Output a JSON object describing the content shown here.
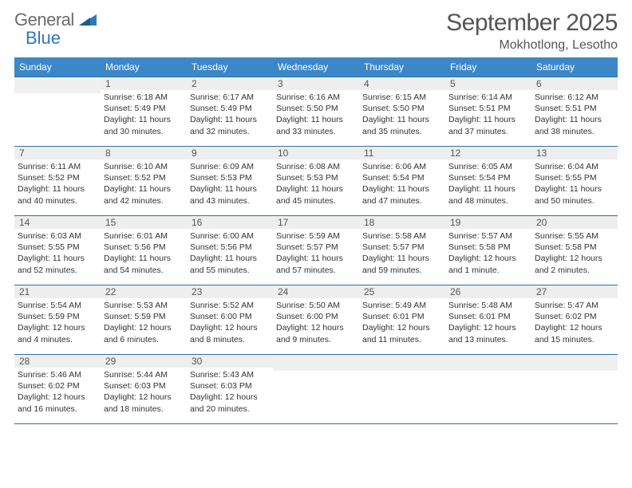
{
  "brand": {
    "part1": "General",
    "part2": "Blue"
  },
  "title": "September 2025",
  "location": "Mokhotlong, Lesotho",
  "colors": {
    "header_bg": "#3b87c8",
    "header_text": "#ffffff",
    "row_divider": "#2f6fa8",
    "daynum_bg": "#eeeeee",
    "text": "#333333",
    "logo_gray": "#6b6b6b",
    "logo_blue": "#2f79b9"
  },
  "weekdays": [
    "Sunday",
    "Monday",
    "Tuesday",
    "Wednesday",
    "Thursday",
    "Friday",
    "Saturday"
  ],
  "weeks": [
    [
      {
        "empty": true
      },
      {
        "day": "1",
        "sunrise": "Sunrise: 6:18 AM",
        "sunset": "Sunset: 5:49 PM",
        "daylight1": "Daylight: 11 hours",
        "daylight2": "and 30 minutes."
      },
      {
        "day": "2",
        "sunrise": "Sunrise: 6:17 AM",
        "sunset": "Sunset: 5:49 PM",
        "daylight1": "Daylight: 11 hours",
        "daylight2": "and 32 minutes."
      },
      {
        "day": "3",
        "sunrise": "Sunrise: 6:16 AM",
        "sunset": "Sunset: 5:50 PM",
        "daylight1": "Daylight: 11 hours",
        "daylight2": "and 33 minutes."
      },
      {
        "day": "4",
        "sunrise": "Sunrise: 6:15 AM",
        "sunset": "Sunset: 5:50 PM",
        "daylight1": "Daylight: 11 hours",
        "daylight2": "and 35 minutes."
      },
      {
        "day": "5",
        "sunrise": "Sunrise: 6:14 AM",
        "sunset": "Sunset: 5:51 PM",
        "daylight1": "Daylight: 11 hours",
        "daylight2": "and 37 minutes."
      },
      {
        "day": "6",
        "sunrise": "Sunrise: 6:12 AM",
        "sunset": "Sunset: 5:51 PM",
        "daylight1": "Daylight: 11 hours",
        "daylight2": "and 38 minutes."
      }
    ],
    [
      {
        "day": "7",
        "sunrise": "Sunrise: 6:11 AM",
        "sunset": "Sunset: 5:52 PM",
        "daylight1": "Daylight: 11 hours",
        "daylight2": "and 40 minutes."
      },
      {
        "day": "8",
        "sunrise": "Sunrise: 6:10 AM",
        "sunset": "Sunset: 5:52 PM",
        "daylight1": "Daylight: 11 hours",
        "daylight2": "and 42 minutes."
      },
      {
        "day": "9",
        "sunrise": "Sunrise: 6:09 AM",
        "sunset": "Sunset: 5:53 PM",
        "daylight1": "Daylight: 11 hours",
        "daylight2": "and 43 minutes."
      },
      {
        "day": "10",
        "sunrise": "Sunrise: 6:08 AM",
        "sunset": "Sunset: 5:53 PM",
        "daylight1": "Daylight: 11 hours",
        "daylight2": "and 45 minutes."
      },
      {
        "day": "11",
        "sunrise": "Sunrise: 6:06 AM",
        "sunset": "Sunset: 5:54 PM",
        "daylight1": "Daylight: 11 hours",
        "daylight2": "and 47 minutes."
      },
      {
        "day": "12",
        "sunrise": "Sunrise: 6:05 AM",
        "sunset": "Sunset: 5:54 PM",
        "daylight1": "Daylight: 11 hours",
        "daylight2": "and 48 minutes."
      },
      {
        "day": "13",
        "sunrise": "Sunrise: 6:04 AM",
        "sunset": "Sunset: 5:55 PM",
        "daylight1": "Daylight: 11 hours",
        "daylight2": "and 50 minutes."
      }
    ],
    [
      {
        "day": "14",
        "sunrise": "Sunrise: 6:03 AM",
        "sunset": "Sunset: 5:55 PM",
        "daylight1": "Daylight: 11 hours",
        "daylight2": "and 52 minutes."
      },
      {
        "day": "15",
        "sunrise": "Sunrise: 6:01 AM",
        "sunset": "Sunset: 5:56 PM",
        "daylight1": "Daylight: 11 hours",
        "daylight2": "and 54 minutes."
      },
      {
        "day": "16",
        "sunrise": "Sunrise: 6:00 AM",
        "sunset": "Sunset: 5:56 PM",
        "daylight1": "Daylight: 11 hours",
        "daylight2": "and 55 minutes."
      },
      {
        "day": "17",
        "sunrise": "Sunrise: 5:59 AM",
        "sunset": "Sunset: 5:57 PM",
        "daylight1": "Daylight: 11 hours",
        "daylight2": "and 57 minutes."
      },
      {
        "day": "18",
        "sunrise": "Sunrise: 5:58 AM",
        "sunset": "Sunset: 5:57 PM",
        "daylight1": "Daylight: 11 hours",
        "daylight2": "and 59 minutes."
      },
      {
        "day": "19",
        "sunrise": "Sunrise: 5:57 AM",
        "sunset": "Sunset: 5:58 PM",
        "daylight1": "Daylight: 12 hours",
        "daylight2": "and 1 minute."
      },
      {
        "day": "20",
        "sunrise": "Sunrise: 5:55 AM",
        "sunset": "Sunset: 5:58 PM",
        "daylight1": "Daylight: 12 hours",
        "daylight2": "and 2 minutes."
      }
    ],
    [
      {
        "day": "21",
        "sunrise": "Sunrise: 5:54 AM",
        "sunset": "Sunset: 5:59 PM",
        "daylight1": "Daylight: 12 hours",
        "daylight2": "and 4 minutes."
      },
      {
        "day": "22",
        "sunrise": "Sunrise: 5:53 AM",
        "sunset": "Sunset: 5:59 PM",
        "daylight1": "Daylight: 12 hours",
        "daylight2": "and 6 minutes."
      },
      {
        "day": "23",
        "sunrise": "Sunrise: 5:52 AM",
        "sunset": "Sunset: 6:00 PM",
        "daylight1": "Daylight: 12 hours",
        "daylight2": "and 8 minutes."
      },
      {
        "day": "24",
        "sunrise": "Sunrise: 5:50 AM",
        "sunset": "Sunset: 6:00 PM",
        "daylight1": "Daylight: 12 hours",
        "daylight2": "and 9 minutes."
      },
      {
        "day": "25",
        "sunrise": "Sunrise: 5:49 AM",
        "sunset": "Sunset: 6:01 PM",
        "daylight1": "Daylight: 12 hours",
        "daylight2": "and 11 minutes."
      },
      {
        "day": "26",
        "sunrise": "Sunrise: 5:48 AM",
        "sunset": "Sunset: 6:01 PM",
        "daylight1": "Daylight: 12 hours",
        "daylight2": "and 13 minutes."
      },
      {
        "day": "27",
        "sunrise": "Sunrise: 5:47 AM",
        "sunset": "Sunset: 6:02 PM",
        "daylight1": "Daylight: 12 hours",
        "daylight2": "and 15 minutes."
      }
    ],
    [
      {
        "day": "28",
        "sunrise": "Sunrise: 5:46 AM",
        "sunset": "Sunset: 6:02 PM",
        "daylight1": "Daylight: 12 hours",
        "daylight2": "and 16 minutes."
      },
      {
        "day": "29",
        "sunrise": "Sunrise: 5:44 AM",
        "sunset": "Sunset: 6:03 PM",
        "daylight1": "Daylight: 12 hours",
        "daylight2": "and 18 minutes."
      },
      {
        "day": "30",
        "sunrise": "Sunrise: 5:43 AM",
        "sunset": "Sunset: 6:03 PM",
        "daylight1": "Daylight: 12 hours",
        "daylight2": "and 20 minutes."
      },
      {
        "empty": true
      },
      {
        "empty": true
      },
      {
        "empty": true
      },
      {
        "empty": true
      }
    ]
  ]
}
